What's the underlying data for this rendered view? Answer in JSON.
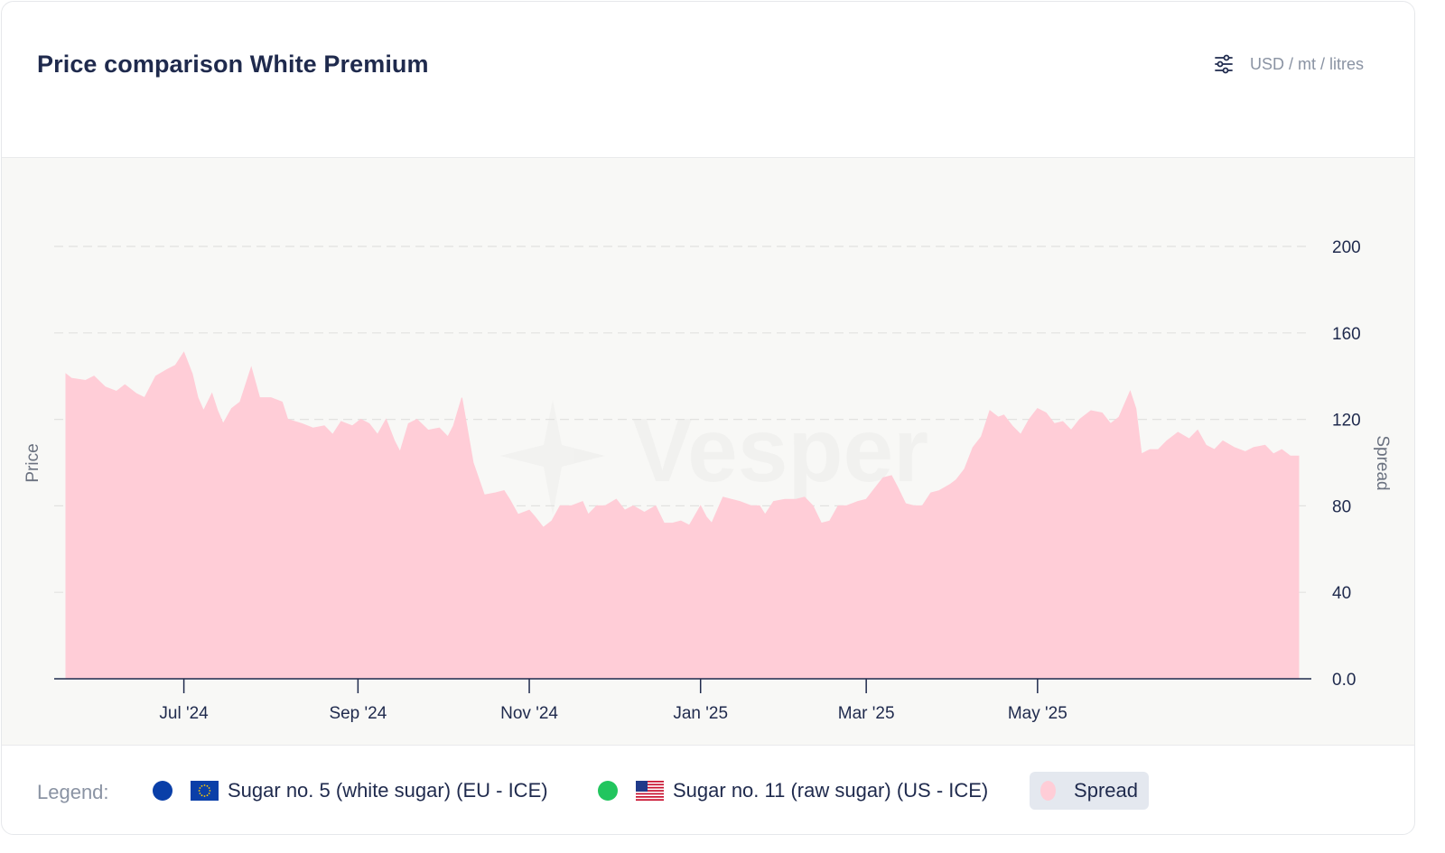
{
  "header": {
    "title": "Price comparison White Premium",
    "units_label": "USD / mt / litres",
    "settings_icon": "sliders-icon"
  },
  "legend": {
    "title": "Legend:",
    "items": [
      {
        "label": "Sugar no. 5 (white sugar) (EU - ICE)",
        "color": "#0a3fa8",
        "icon": "eu-flag-icon"
      },
      {
        "label": "Sugar no. 11 (raw sugar) (US - ICE)",
        "color": "#22c55e",
        "icon": "us-flag-icon"
      },
      {
        "label": "Spread",
        "color": "#ffcdd7",
        "active": true
      }
    ]
  },
  "watermark": "Vesper",
  "chart_data": {
    "type": "area",
    "ylabel_left": "Price",
    "ylabel_right": "Spread",
    "ylim": [
      0,
      200
    ],
    "y_ticks": [
      "0.0",
      "40",
      "80",
      "120",
      "160",
      "200"
    ],
    "x_ticks": [
      {
        "label": "Jul '24",
        "date": "2024-07-01"
      },
      {
        "label": "Sep '24",
        "date": "2024-09-01"
      },
      {
        "label": "Nov '24",
        "date": "2024-11-01"
      },
      {
        "label": "Jan '25",
        "date": "2025-01-01"
      },
      {
        "label": "Mar '25",
        "date": "2025-03-01"
      },
      {
        "label": "May '25",
        "date": "2025-05-01"
      }
    ],
    "grid": true,
    "series": [
      {
        "name": "Spread",
        "color": "#ffcdd7",
        "points": [
          [
            "2024-05-20",
            141
          ],
          [
            "2024-05-22",
            139
          ],
          [
            "2024-05-27",
            138
          ],
          [
            "2024-05-30",
            140
          ],
          [
            "2024-06-03",
            135
          ],
          [
            "2024-06-07",
            133
          ],
          [
            "2024-06-10",
            136
          ],
          [
            "2024-06-14",
            132
          ],
          [
            "2024-06-17",
            130
          ],
          [
            "2024-06-21",
            140
          ],
          [
            "2024-06-25",
            143
          ],
          [
            "2024-06-28",
            145
          ],
          [
            "2024-07-01",
            151
          ],
          [
            "2024-07-04",
            141
          ],
          [
            "2024-07-06",
            130
          ],
          [
            "2024-07-08",
            124
          ],
          [
            "2024-07-11",
            132
          ],
          [
            "2024-07-13",
            124
          ],
          [
            "2024-07-15",
            118
          ],
          [
            "2024-07-18",
            125
          ],
          [
            "2024-07-21",
            128
          ],
          [
            "2024-07-25",
            144
          ],
          [
            "2024-07-28",
            130
          ],
          [
            "2024-08-01",
            130
          ],
          [
            "2024-08-05",
            128
          ],
          [
            "2024-08-07",
            120
          ],
          [
            "2024-08-12",
            118
          ],
          [
            "2024-08-16",
            116
          ],
          [
            "2024-08-20",
            117
          ],
          [
            "2024-08-23",
            113
          ],
          [
            "2024-08-26",
            119
          ],
          [
            "2024-08-30",
            117
          ],
          [
            "2024-09-02",
            120
          ],
          [
            "2024-09-05",
            118
          ],
          [
            "2024-09-08",
            113
          ],
          [
            "2024-09-11",
            120
          ],
          [
            "2024-09-14",
            110
          ],
          [
            "2024-09-16",
            105
          ],
          [
            "2024-09-19",
            118
          ],
          [
            "2024-09-22",
            120
          ],
          [
            "2024-09-26",
            115
          ],
          [
            "2024-09-30",
            116
          ],
          [
            "2024-10-03",
            112
          ],
          [
            "2024-10-05",
            117
          ],
          [
            "2024-10-08",
            130
          ],
          [
            "2024-10-12",
            100
          ],
          [
            "2024-10-16",
            85
          ],
          [
            "2024-10-20",
            86
          ],
          [
            "2024-10-23",
            87
          ],
          [
            "2024-10-25",
            83
          ],
          [
            "2024-10-28",
            76
          ],
          [
            "2024-11-01",
            78
          ],
          [
            "2024-11-03",
            75
          ],
          [
            "2024-11-06",
            70
          ],
          [
            "2024-11-09",
            73
          ],
          [
            "2024-11-12",
            80
          ],
          [
            "2024-11-16",
            80
          ],
          [
            "2024-11-20",
            82
          ],
          [
            "2024-11-22",
            76
          ],
          [
            "2024-11-25",
            80
          ],
          [
            "2024-11-28",
            80
          ],
          [
            "2024-12-02",
            83
          ],
          [
            "2024-12-05",
            78
          ],
          [
            "2024-12-08",
            80
          ],
          [
            "2024-12-12",
            77
          ],
          [
            "2024-12-16",
            80
          ],
          [
            "2024-12-19",
            72
          ],
          [
            "2024-12-22",
            72
          ],
          [
            "2024-12-25",
            73
          ],
          [
            "2024-12-28",
            71
          ],
          [
            "2025-01-01",
            80
          ],
          [
            "2025-01-03",
            75
          ],
          [
            "2025-01-05",
            72
          ],
          [
            "2025-01-09",
            84
          ],
          [
            "2025-01-12",
            83
          ],
          [
            "2025-01-15",
            82
          ],
          [
            "2025-01-19",
            80
          ],
          [
            "2025-01-22",
            80
          ],
          [
            "2025-01-24",
            76
          ],
          [
            "2025-01-27",
            82
          ],
          [
            "2025-01-31",
            83
          ],
          [
            "2025-02-04",
            83
          ],
          [
            "2025-02-07",
            84
          ],
          [
            "2025-02-10",
            80
          ],
          [
            "2025-02-13",
            72
          ],
          [
            "2025-02-16",
            73
          ],
          [
            "2025-02-19",
            80
          ],
          [
            "2025-02-22",
            80
          ],
          [
            "2025-02-26",
            82
          ],
          [
            "2025-03-01",
            83
          ],
          [
            "2025-03-04",
            88
          ],
          [
            "2025-03-07",
            93
          ],
          [
            "2025-03-10",
            94
          ],
          [
            "2025-03-12",
            89
          ],
          [
            "2025-03-15",
            81
          ],
          [
            "2025-03-18",
            80
          ],
          [
            "2025-03-21",
            80
          ],
          [
            "2025-03-24",
            86
          ],
          [
            "2025-03-27",
            87
          ],
          [
            "2025-03-31",
            90
          ],
          [
            "2025-04-02",
            92
          ],
          [
            "2025-04-05",
            97
          ],
          [
            "2025-04-08",
            107
          ],
          [
            "2025-04-11",
            112
          ],
          [
            "2025-04-14",
            124
          ],
          [
            "2025-04-17",
            121
          ],
          [
            "2025-04-19",
            122
          ],
          [
            "2025-04-22",
            117
          ],
          [
            "2025-04-25",
            113
          ],
          [
            "2025-04-28",
            120
          ],
          [
            "2025-05-01",
            125
          ],
          [
            "2025-05-04",
            123
          ],
          [
            "2025-05-07",
            118
          ],
          [
            "2025-05-10",
            119
          ],
          [
            "2025-05-13",
            115
          ],
          [
            "2025-05-16",
            120
          ],
          [
            "2025-05-20",
            124
          ],
          [
            "2025-05-24",
            123
          ],
          [
            "2025-05-27",
            118
          ],
          [
            "2025-05-30",
            121
          ],
          [
            "2025-06-03",
            133
          ],
          [
            "2025-06-05",
            125
          ],
          [
            "2025-06-07",
            104
          ],
          [
            "2025-06-10",
            106
          ],
          [
            "2025-06-13",
            106
          ],
          [
            "2025-06-16",
            110
          ],
          [
            "2025-06-20",
            114
          ],
          [
            "2025-06-24",
            111
          ],
          [
            "2025-06-27",
            115
          ],
          [
            "2025-06-30",
            108
          ],
          [
            "2025-07-03",
            106
          ],
          [
            "2025-07-06",
            110
          ],
          [
            "2025-07-10",
            107
          ],
          [
            "2025-07-14",
            105
          ],
          [
            "2025-07-17",
            107
          ],
          [
            "2025-07-21",
            108
          ],
          [
            "2025-07-24",
            104
          ],
          [
            "2025-07-27",
            106
          ],
          [
            "2025-07-30",
            103
          ],
          [
            "2025-08-02",
            103
          ]
        ]
      }
    ]
  }
}
